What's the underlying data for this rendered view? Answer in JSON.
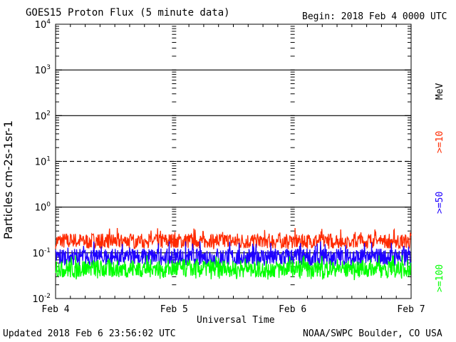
{
  "header": {
    "title": "GOES15 Proton Flux (5 minute data)",
    "begin": "Begin: 2018 Feb 4 0000 UTC"
  },
  "footer": {
    "updated": "Updated 2018 Feb  6 23:56:02 UTC",
    "credit": "NOAA/SWPC Boulder, CO USA"
  },
  "legend": {
    "unit": "MeV",
    "entries": [
      {
        "label": ">=10",
        "color": "#ff2a00"
      },
      {
        "label": ">=50",
        "color": "#1e00ff"
      },
      {
        "label": ">=100",
        "color": "#00ff00"
      }
    ]
  },
  "chart_data": {
    "type": "line",
    "title": "GOES15 Proton Flux (5 minute data)",
    "xlabel": "Universal Time",
    "ylabel": "Particles cm-2s-1sr-1",
    "y_scale": "log",
    "ylim": [
      0.01,
      10000
    ],
    "xlim": [
      "2018-02-04T00:00",
      "2018-02-07T00:00"
    ],
    "x_ticks": [
      "Feb 4",
      "Feb 5",
      "Feb 6",
      "Feb 7"
    ],
    "y_ticks": [
      {
        "base": "10",
        "exp": "4"
      },
      {
        "base": "10",
        "exp": "3"
      },
      {
        "base": "10",
        "exp": "2"
      },
      {
        "base": "10",
        "exp": "1"
      },
      {
        "base": "10",
        "exp": "0"
      },
      {
        "base": "10",
        "exp": "-1"
      },
      {
        "base": "10",
        "exp": "-2"
      }
    ],
    "threshold_lines": [
      1000,
      100,
      10,
      1,
      0.1
    ],
    "series": [
      {
        "name": ">=10",
        "color": "#ff2a00",
        "x": [
          "2018-02-04T00:00",
          "2018-02-04T12:00",
          "2018-02-05T00:00",
          "2018-02-05T12:00",
          "2018-02-06T00:00",
          "2018-02-06T12:00",
          "2018-02-07T00:00"
        ],
        "values": [
          0.18,
          0.18,
          0.18,
          0.17,
          0.18,
          0.18,
          0.18
        ],
        "range": [
          0.12,
          0.35
        ]
      },
      {
        "name": ">=50",
        "color": "#1e00ff",
        "x": [
          "2018-02-04T00:00",
          "2018-02-04T12:00",
          "2018-02-05T00:00",
          "2018-02-05T12:00",
          "2018-02-06T00:00",
          "2018-02-06T12:00",
          "2018-02-07T00:00"
        ],
        "values": [
          0.08,
          0.08,
          0.08,
          0.08,
          0.08,
          0.08,
          0.08
        ],
        "range": [
          0.05,
          0.18
        ]
      },
      {
        "name": ">=100",
        "color": "#00ff00",
        "x": [
          "2018-02-04T00:00",
          "2018-02-04T12:00",
          "2018-02-05T00:00",
          "2018-02-05T12:00",
          "2018-02-06T00:00",
          "2018-02-06T12:00",
          "2018-02-07T00:00"
        ],
        "values": [
          0.045,
          0.045,
          0.045,
          0.045,
          0.045,
          0.045,
          0.045
        ],
        "range": [
          0.025,
          0.09
        ]
      }
    ]
  }
}
